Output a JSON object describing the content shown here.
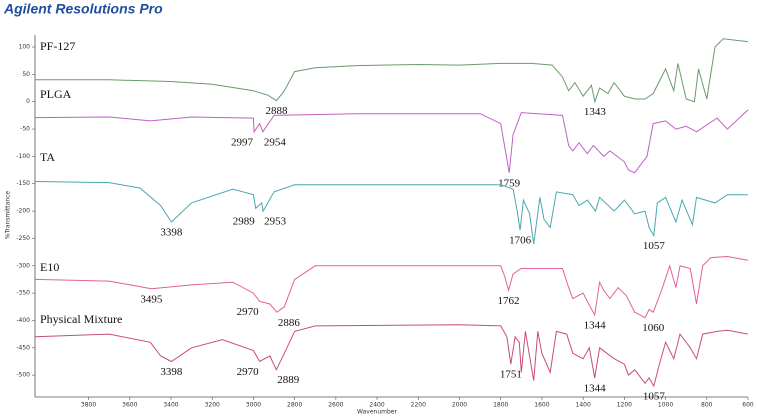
{
  "chart_data": {
    "type": "line",
    "title": "Agilent Resolutions Pro",
    "x_label": "Wavenumber",
    "y_label": "%Transmittance",
    "xlim": [
      4060,
      600
    ],
    "ylim": [
      -540,
      122
    ],
    "xticks": [
      3800,
      3600,
      3400,
      3200,
      3000,
      2800,
      2600,
      2400,
      2200,
      2000,
      1800,
      1600,
      1400,
      1200,
      1000,
      800,
      600
    ],
    "yticks": [
      100,
      50,
      0,
      -50,
      -100,
      -150,
      -200,
      -250,
      -300,
      -350,
      -400,
      -450,
      -500
    ],
    "series": [
      {
        "name": "PF-127",
        "color": "#6b9a6b",
        "x": [
          4060,
          3700,
          3400,
          3200,
          3000,
          2930,
          2888,
          2850,
          2800,
          2700,
          2500,
          2200,
          2000,
          1800,
          1650,
          1550,
          1500,
          1470,
          1440,
          1400,
          1360,
          1343,
          1320,
          1280,
          1250,
          1200,
          1150,
          1100,
          1060,
          1000,
          960,
          940,
          900,
          860,
          840,
          800,
          760,
          720,
          650,
          600
        ],
        "values": [
          40,
          40,
          37,
          32,
          20,
          12,
          2,
          20,
          55,
          62,
          66,
          68,
          67,
          70,
          70,
          67,
          45,
          20,
          35,
          10,
          30,
          0,
          25,
          15,
          35,
          10,
          5,
          5,
          15,
          60,
          20,
          70,
          5,
          0,
          60,
          5,
          100,
          115,
          112,
          110
        ],
        "peaks": [
          2888,
          1343
        ]
      },
      {
        "name": "PLGA",
        "color": "#c160c4",
        "x": [
          4060,
          3700,
          3500,
          3300,
          3000,
          2997,
          2970,
          2954,
          2900,
          2500,
          1900,
          1800,
          1759,
          1740,
          1700,
          1500,
          1470,
          1450,
          1420,
          1380,
          1350,
          1300,
          1270,
          1200,
          1180,
          1150,
          1120,
          1090,
          1060,
          1000,
          950,
          900,
          850,
          750,
          700,
          600
        ],
        "values": [
          -29,
          -28,
          -35,
          -28,
          -30,
          -55,
          -40,
          -55,
          -25,
          -22,
          -22,
          -40,
          -130,
          -60,
          -20,
          -25,
          -80,
          -90,
          -75,
          -95,
          -80,
          -100,
          -90,
          -110,
          -125,
          -130,
          -115,
          -100,
          -40,
          -35,
          -50,
          -45,
          -55,
          -30,
          -50,
          -15
        ],
        "peaks": [
          2997,
          2954,
          1759
        ]
      },
      {
        "name": "TA",
        "color": "#4aa7b0",
        "x": [
          4060,
          3700,
          3550,
          3450,
          3398,
          3300,
          3100,
          3000,
          2989,
          2960,
          2953,
          2900,
          2800,
          2000,
          1800,
          1740,
          1720,
          1706,
          1690,
          1660,
          1640,
          1610,
          1590,
          1560,
          1530,
          1450,
          1420,
          1380,
          1340,
          1320,
          1250,
          1200,
          1150,
          1100,
          1080,
          1057,
          1040,
          1000,
          950,
          920,
          870,
          850,
          760,
          700,
          600
        ],
        "values": [
          -146,
          -148,
          -158,
          -190,
          -220,
          -185,
          -160,
          -170,
          -195,
          -185,
          -200,
          -165,
          -152,
          -152,
          -152,
          -160,
          -200,
          -235,
          -180,
          -205,
          -260,
          -175,
          -215,
          -230,
          -165,
          -170,
          -190,
          -180,
          -200,
          -175,
          -200,
          -180,
          -205,
          -200,
          -230,
          -245,
          -185,
          -175,
          -220,
          -180,
          -225,
          -175,
          -185,
          -170,
          -170
        ],
        "peaks": [
          3398,
          2989,
          2953,
          1706,
          1057
        ]
      },
      {
        "name": "E10",
        "color": "#e2609c",
        "x": [
          4060,
          3700,
          3495,
          3300,
          3100,
          3000,
          2970,
          2920,
          2886,
          2850,
          2800,
          2700,
          2000,
          1800,
          1780,
          1762,
          1740,
          1700,
          1500,
          1470,
          1450,
          1400,
          1380,
          1344,
          1320,
          1300,
          1270,
          1230,
          1190,
          1150,
          1100,
          1080,
          1060,
          1020,
          980,
          950,
          930,
          880,
          850,
          820,
          780,
          700,
          600
        ],
        "values": [
          -325,
          -328,
          -342,
          -335,
          -330,
          -350,
          -365,
          -370,
          -385,
          -375,
          -325,
          -300,
          -300,
          -300,
          -320,
          -345,
          -315,
          -305,
          -305,
          -340,
          -360,
          -350,
          -365,
          -390,
          -330,
          -345,
          -360,
          -340,
          -355,
          -385,
          -395,
          -380,
          -385,
          -345,
          -300,
          -340,
          -300,
          -305,
          -370,
          -300,
          -285,
          -283,
          -290
        ],
        "peaks": [
          3495,
          2970,
          2886,
          1762,
          1344,
          1060
        ]
      },
      {
        "name": "Physical Mixture",
        "color": "#c94d72",
        "x": [
          4060,
          3700,
          3500,
          3450,
          3398,
          3300,
          3150,
          3000,
          2970,
          2920,
          2889,
          2850,
          2800,
          2700,
          2000,
          1800,
          1770,
          1751,
          1730,
          1710,
          1700,
          1680,
          1640,
          1620,
          1600,
          1560,
          1530,
          1480,
          1450,
          1400,
          1370,
          1344,
          1320,
          1250,
          1200,
          1180,
          1150,
          1100,
          1080,
          1057,
          1030,
          1000,
          960,
          930,
          880,
          850,
          820,
          750,
          700,
          600
        ],
        "values": [
          -430,
          -425,
          -440,
          -465,
          -475,
          -450,
          -435,
          -455,
          -475,
          -465,
          -490,
          -460,
          -420,
          -410,
          -408,
          -410,
          -430,
          -480,
          -430,
          -440,
          -495,
          -420,
          -510,
          -420,
          -460,
          -495,
          -420,
          -425,
          -460,
          -470,
          -450,
          -505,
          -450,
          -470,
          -480,
          -500,
          -490,
          -515,
          -505,
          -520,
          -480,
          -440,
          -470,
          -425,
          -450,
          -470,
          -425,
          -420,
          -418,
          -425
        ],
        "peaks": [
          3398,
          2970,
          2889,
          1751,
          1344,
          1057
        ]
      }
    ]
  }
}
